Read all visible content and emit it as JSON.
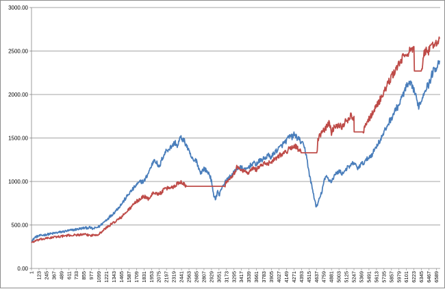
{
  "chart_data": {
    "type": "line",
    "title": "",
    "xlabel": "",
    "ylabel": "",
    "ylim": [
      0,
      3000
    ],
    "xlim": [
      1,
      6650
    ],
    "grid": "horizontal",
    "legend": "none",
    "y_tick_labels": [
      "0.00",
      "500.00",
      "1000.00",
      "1500.00",
      "2000.00",
      "2500.00",
      "3000.00"
    ],
    "y_tick_values": [
      0,
      500,
      1000,
      1500,
      2000,
      2500,
      3000
    ],
    "x_tick_labels": [
      "1",
      "123",
      "245",
      "367",
      "489",
      "611",
      "733",
      "855",
      "977",
      "1099",
      "1221",
      "1343",
      "1465",
      "1587",
      "1709",
      "1831",
      "1953",
      "2075",
      "2197",
      "2319",
      "2441",
      "2563",
      "2685",
      "2807",
      "2929",
      "3051",
      "3173",
      "3295",
      "3417",
      "3539",
      "3661",
      "3783",
      "3905",
      "4027",
      "4149",
      "4271",
      "4393",
      "4515",
      "4637",
      "4759",
      "4881",
      "5003",
      "5125",
      "5247",
      "5369",
      "5491",
      "5613",
      "5735",
      "5857",
      "5979",
      "6101",
      "6223",
      "6345",
      "6467",
      "6589"
    ],
    "x_tick_values": [
      1,
      123,
      245,
      367,
      489,
      611,
      733,
      855,
      977,
      1099,
      1221,
      1343,
      1465,
      1587,
      1709,
      1831,
      1953,
      2075,
      2197,
      2319,
      2441,
      2563,
      2685,
      2807,
      2929,
      3051,
      3173,
      3295,
      3417,
      3539,
      3661,
      3783,
      3905,
      4027,
      4149,
      4271,
      4393,
      4515,
      4637,
      4759,
      4881,
      5003,
      5125,
      5247,
      5369,
      5491,
      5613,
      5735,
      5857,
      5979,
      6101,
      6223,
      6345,
      6467,
      6589
    ],
    "series": [
      {
        "color": "#4a7ebb",
        "points": [
          [
            1,
            310
          ],
          [
            60,
            360
          ],
          [
            123,
            375
          ],
          [
            245,
            390
          ],
          [
            367,
            405
          ],
          [
            489,
            420
          ],
          [
            611,
            435
          ],
          [
            733,
            450
          ],
          [
            855,
            465
          ],
          [
            950,
            470
          ],
          [
            1000,
            455
          ],
          [
            1099,
            480
          ],
          [
            1221,
            560
          ],
          [
            1343,
            640
          ],
          [
            1465,
            740
          ],
          [
            1587,
            860
          ],
          [
            1709,
            960
          ],
          [
            1780,
            1000
          ],
          [
            1831,
            1000
          ],
          [
            1890,
            1080
          ],
          [
            1953,
            1180
          ],
          [
            2000,
            1260
          ],
          [
            2050,
            1200
          ],
          [
            2075,
            1150
          ],
          [
            2130,
            1270
          ],
          [
            2197,
            1360
          ],
          [
            2250,
            1380
          ],
          [
            2300,
            1420
          ],
          [
            2340,
            1450
          ],
          [
            2380,
            1400
          ],
          [
            2410,
            1490
          ],
          [
            2441,
            1500
          ],
          [
            2480,
            1470
          ],
          [
            2520,
            1420
          ],
          [
            2563,
            1340
          ],
          [
            2600,
            1280
          ],
          [
            2640,
            1230
          ],
          [
            2685,
            1250
          ],
          [
            2720,
            1150
          ],
          [
            2760,
            1100
          ],
          [
            2807,
            1150
          ],
          [
            2850,
            1120
          ],
          [
            2900,
            1080
          ],
          [
            2929,
            1000
          ],
          [
            2960,
            850
          ],
          [
            3000,
            800
          ],
          [
            3030,
            900
          ],
          [
            3051,
            830
          ],
          [
            3100,
            940
          ],
          [
            3173,
            1010
          ],
          [
            3250,
            1070
          ],
          [
            3295,
            1100
          ],
          [
            3340,
            1150
          ],
          [
            3417,
            1160
          ],
          [
            3480,
            1130
          ],
          [
            3539,
            1170
          ],
          [
            3600,
            1210
          ],
          [
            3661,
            1200
          ],
          [
            3720,
            1240
          ],
          [
            3783,
            1260
          ],
          [
            3850,
            1300
          ],
          [
            3905,
            1280
          ],
          [
            3960,
            1340
          ],
          [
            4027,
            1380
          ],
          [
            4080,
            1420
          ],
          [
            4149,
            1470
          ],
          [
            4200,
            1520
          ],
          [
            4240,
            1510
          ],
          [
            4271,
            1540
          ],
          [
            4330,
            1500
          ],
          [
            4393,
            1450
          ],
          [
            4440,
            1390
          ],
          [
            4480,
            1280
          ],
          [
            4515,
            1100
          ],
          [
            4560,
            950
          ],
          [
            4590,
            850
          ],
          [
            4610,
            780
          ],
          [
            4637,
            700
          ],
          [
            4680,
            790
          ],
          [
            4720,
            870
          ],
          [
            4759,
            1000
          ],
          [
            4800,
            1060
          ],
          [
            4840,
            1020
          ],
          [
            4881,
            1000
          ],
          [
            4930,
            1070
          ],
          [
            5003,
            1120
          ],
          [
            5060,
            1090
          ],
          [
            5125,
            1150
          ],
          [
            5180,
            1170
          ],
          [
            5247,
            1220
          ],
          [
            5300,
            1150
          ],
          [
            5369,
            1200
          ],
          [
            5430,
            1230
          ],
          [
            5491,
            1280
          ],
          [
            5550,
            1320
          ],
          [
            5613,
            1410
          ],
          [
            5680,
            1480
          ],
          [
            5735,
            1560
          ],
          [
            5800,
            1660
          ],
          [
            5857,
            1730
          ],
          [
            5920,
            1820
          ],
          [
            5979,
            1880
          ],
          [
            6040,
            1990
          ],
          [
            6101,
            2090
          ],
          [
            6160,
            2120
          ],
          [
            6223,
            2060
          ],
          [
            6260,
            1950
          ],
          [
            6300,
            1870
          ],
          [
            6345,
            1930
          ],
          [
            6400,
            2060
          ],
          [
            6467,
            2120
          ],
          [
            6530,
            2260
          ],
          [
            6589,
            2320
          ],
          [
            6640,
            2390
          ]
        ]
      },
      {
        "color": "#be4b48",
        "points": [
          [
            1,
            300
          ],
          [
            123,
            330
          ],
          [
            245,
            345
          ],
          [
            367,
            360
          ],
          [
            489,
            370
          ],
          [
            611,
            380
          ],
          [
            733,
            385
          ],
          [
            855,
            390
          ],
          [
            977,
            380
          ],
          [
            1099,
            395
          ],
          [
            1221,
            470
          ],
          [
            1343,
            530
          ],
          [
            1465,
            590
          ],
          [
            1587,
            680
          ],
          [
            1709,
            770
          ],
          [
            1831,
            830
          ],
          [
            1900,
            800
          ],
          [
            1953,
            840
          ],
          [
            2000,
            880
          ],
          [
            2075,
            850
          ],
          [
            2150,
            900
          ],
          [
            2197,
            920
          ],
          [
            2260,
            930
          ],
          [
            2319,
            940
          ],
          [
            2380,
            980
          ],
          [
            2441,
            1000
          ],
          [
            2500,
            960
          ],
          [
            2520,
            945
          ],
          [
            3150,
            945
          ],
          [
            3173,
            1000
          ],
          [
            3250,
            1060
          ],
          [
            3295,
            1090
          ],
          [
            3340,
            1160
          ],
          [
            3417,
            1140
          ],
          [
            3480,
            1110
          ],
          [
            3539,
            1100
          ],
          [
            3600,
            1150
          ],
          [
            3661,
            1140
          ],
          [
            3720,
            1180
          ],
          [
            3783,
            1200
          ],
          [
            3850,
            1210
          ],
          [
            3905,
            1230
          ],
          [
            3960,
            1260
          ],
          [
            4027,
            1300
          ],
          [
            4080,
            1320
          ],
          [
            4149,
            1340
          ],
          [
            4200,
            1380
          ],
          [
            4240,
            1390
          ],
          [
            4271,
            1420
          ],
          [
            4330,
            1380
          ],
          [
            4380,
            1340
          ],
          [
            4393,
            1330
          ],
          [
            4650,
            1330
          ],
          [
            4660,
            1480
          ],
          [
            4720,
            1560
          ],
          [
            4759,
            1590
          ],
          [
            4800,
            1630
          ],
          [
            4840,
            1680
          ],
          [
            4881,
            1560
          ],
          [
            4930,
            1640
          ],
          [
            5003,
            1650
          ],
          [
            5060,
            1630
          ],
          [
            5100,
            1680
          ],
          [
            5160,
            1720
          ],
          [
            5200,
            1760
          ],
          [
            5247,
            1720
          ],
          [
            5250,
            1570
          ],
          [
            5400,
            1570
          ],
          [
            5420,
            1650
          ],
          [
            5491,
            1720
          ],
          [
            5560,
            1800
          ],
          [
            5613,
            1870
          ],
          [
            5680,
            1950
          ],
          [
            5735,
            2030
          ],
          [
            5800,
            2120
          ],
          [
            5857,
            2200
          ],
          [
            5920,
            2280
          ],
          [
            5979,
            2350
          ],
          [
            6040,
            2420
          ],
          [
            6101,
            2470
          ],
          [
            6160,
            2500
          ],
          [
            6223,
            2510
          ],
          [
            6230,
            2270
          ],
          [
            6350,
            2270
          ],
          [
            6380,
            2450
          ],
          [
            6430,
            2530
          ],
          [
            6467,
            2500
          ],
          [
            6520,
            2560
          ],
          [
            6589,
            2600
          ],
          [
            6640,
            2640
          ]
        ]
      }
    ]
  }
}
